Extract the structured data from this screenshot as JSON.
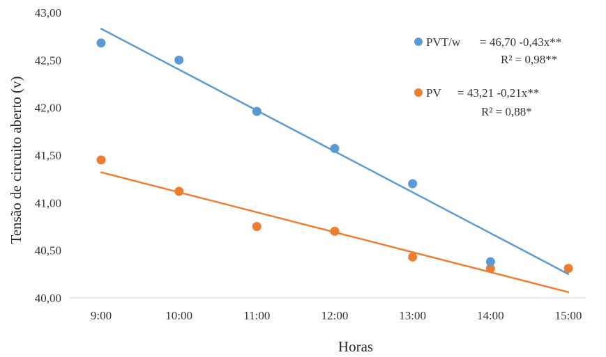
{
  "chart_data": {
    "type": "scatter",
    "title": "",
    "xlabel": "Horas",
    "ylabel": "Tensão de circuito aberto (v)",
    "x_categories": [
      "9:00",
      "10:00",
      "11:00",
      "12:00",
      "13:00",
      "14:00",
      "15:00"
    ],
    "y_ticks": [
      "40,00",
      "40,50",
      "41,00",
      "41,50",
      "42,00",
      "42,50",
      "43,00"
    ],
    "ylim": [
      40.0,
      43.0
    ],
    "grid": false,
    "legend_position": "top-right",
    "series": [
      {
        "name": "PVT/w",
        "color": "#5B9BD5",
        "values": [
          42.68,
          42.5,
          41.96,
          41.57,
          41.2,
          40.38,
          null
        ],
        "trendline": {
          "intercept": 46.7,
          "slope": -0.43,
          "x_from": 9,
          "x_to": 15
        },
        "equation": "= 46,70 -0,43x**",
        "r2": "R² = 0,98**"
      },
      {
        "name": "PV",
        "color": "#ED7D31",
        "values": [
          41.45,
          41.12,
          40.75,
          40.7,
          40.43,
          40.31,
          40.31
        ],
        "trendline": {
          "intercept": 43.21,
          "slope": -0.21,
          "x_from": 9,
          "x_to": 15
        },
        "equation": "= 43,21 -0,21x**",
        "r2": "R² = 0,88*"
      }
    ]
  }
}
